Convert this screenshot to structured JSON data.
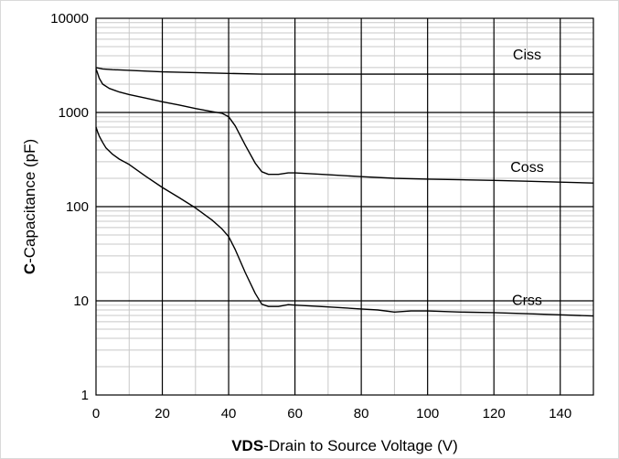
{
  "chart_data": {
    "type": "line",
    "title": "",
    "xlabel_bold": "VDS",
    "xlabel_rest": "-Drain to Source Voltage (V)",
    "ylabel_bold": "C",
    "ylabel_rest": "-Capacitance  (pF)",
    "xlim": [
      0,
      150
    ],
    "ylim": [
      1,
      10000
    ],
    "yscale": "log",
    "grid": true,
    "x_ticks": [
      "0",
      "20",
      "40",
      "60",
      "80",
      "100",
      "120",
      "140"
    ],
    "y_ticks": [
      "1",
      "10",
      "100",
      "1000",
      "10000"
    ],
    "series": [
      {
        "name": "Ciss",
        "x": [
          0,
          2,
          5,
          10,
          20,
          30,
          40,
          50,
          60,
          80,
          100,
          120,
          150
        ],
        "y": [
          3000,
          2900,
          2850,
          2800,
          2700,
          2650,
          2600,
          2550,
          2550,
          2550,
          2550,
          2550,
          2550
        ]
      },
      {
        "name": "Coss",
        "x": [
          0,
          0.5,
          1,
          2,
          4,
          7,
          10,
          15,
          20,
          25,
          30,
          35,
          38,
          40,
          42,
          45,
          48,
          50,
          52,
          55,
          58,
          60,
          70,
          80,
          90,
          100,
          110,
          120,
          130,
          140,
          150
        ],
        "y": [
          2900,
          2600,
          2300,
          2000,
          1800,
          1650,
          1550,
          1420,
          1300,
          1200,
          1100,
          1020,
          980,
          900,
          720,
          450,
          290,
          235,
          220,
          220,
          228,
          228,
          218,
          208,
          200,
          196,
          193,
          190,
          186,
          182,
          178
        ]
      },
      {
        "name": "Crss",
        "x": [
          0,
          0.5,
          1,
          2,
          3,
          5,
          7,
          10,
          15,
          20,
          25,
          30,
          35,
          38,
          40,
          42,
          45,
          48,
          50,
          52,
          55,
          58,
          60,
          70,
          80,
          85,
          90,
          95,
          100,
          110,
          120,
          130,
          140,
          150
        ],
        "y": [
          700,
          620,
          560,
          480,
          420,
          360,
          320,
          280,
          210,
          160,
          125,
          97,
          72,
          58,
          48,
          35,
          20,
          12,
          9.2,
          8.7,
          8.7,
          9.1,
          9.0,
          8.6,
          8.2,
          8.0,
          7.6,
          7.8,
          7.8,
          7.6,
          7.5,
          7.3,
          7.1,
          6.9
        ]
      }
    ]
  }
}
